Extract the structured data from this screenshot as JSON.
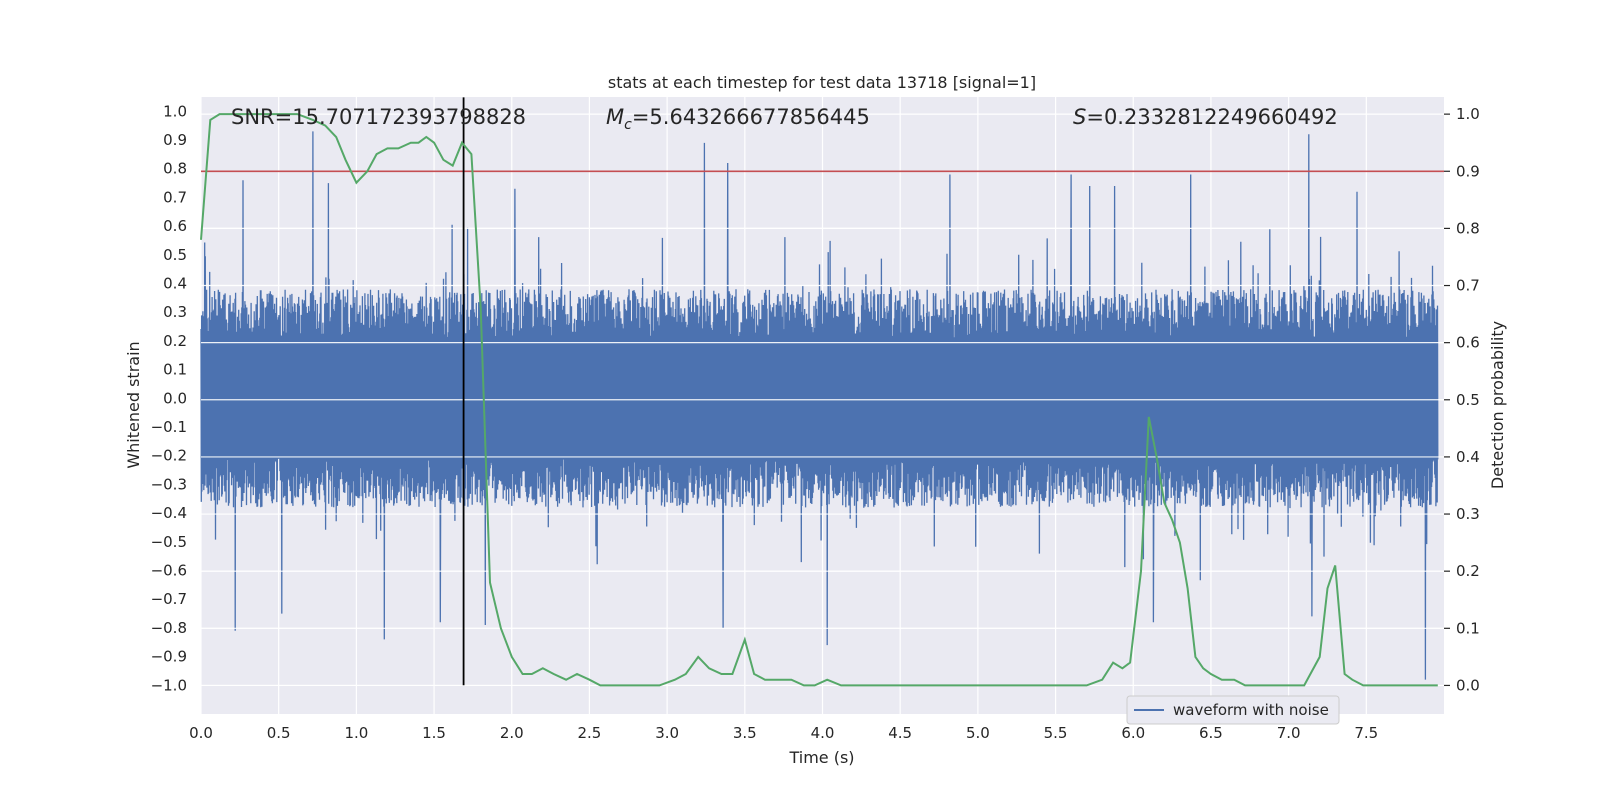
{
  "chart_data": {
    "type": "line",
    "title": "stats at each timestep for test data 13718 [signal=1]",
    "xlabel": "Time (s)",
    "ylabel": "Whitened strain",
    "ylabel_right": "Detection probability",
    "xlim": [
      0.0,
      8.0
    ],
    "ylim": [
      -1.1,
      1.05
    ],
    "ylim_right": [
      -0.05,
      1.03
    ],
    "x_ticks": [
      0.0,
      0.5,
      1.0,
      1.5,
      2.0,
      2.5,
      3.0,
      3.5,
      4.0,
      4.5,
      5.0,
      5.5,
      6.0,
      6.5,
      7.0,
      7.5
    ],
    "x_tick_labels": [
      "0.0",
      "0.5",
      "1.0",
      "1.5",
      "2.0",
      "2.5",
      "3.0",
      "3.5",
      "4.0",
      "4.5",
      "5.0",
      "5.5",
      "6.0",
      "6.5",
      "7.0",
      "7.5"
    ],
    "y_ticks": [
      1.0,
      0.9,
      0.8,
      0.7,
      0.6,
      0.5,
      0.4,
      0.3,
      0.2,
      0.1,
      0.0,
      -0.1,
      -0.2,
      -0.3,
      -0.4,
      -0.5,
      -0.6,
      -0.7,
      -0.8,
      -0.9,
      -1.0
    ],
    "y_tick_labels": [
      "1.0",
      "0.9",
      "0.8",
      "0.7",
      "0.6",
      "0.5",
      "0.4",
      "0.3",
      "0.2",
      "0.1",
      "0.0",
      "−0.1",
      "−0.2",
      "−0.3",
      "−0.4",
      "−0.5",
      "−0.6",
      "−0.7",
      "−0.8",
      "−0.9",
      "−1.0"
    ],
    "y_right_ticks": [
      1.0,
      0.9,
      0.8,
      0.7,
      0.6,
      0.5,
      0.4,
      0.3,
      0.2,
      0.1,
      0.0
    ],
    "y_right_tick_labels": [
      "1.0",
      "0.9",
      "0.8",
      "0.7",
      "0.6",
      "0.5",
      "0.4",
      "0.3",
      "0.2",
      "0.1",
      "0.0"
    ],
    "annotations": {
      "snr": "SNR=15.707172393798828",
      "mc_symbol": "M",
      "mc_subscript": "c",
      "mc_value": "=5.643266677856445",
      "s_symbol": "S",
      "s_value": "=0.2332812249660492"
    },
    "legend": {
      "position": "bottom-right",
      "entries": [
        "waveform with noise"
      ]
    },
    "waveform": {
      "name": "waveform with noise",
      "color": "#4c72b0",
      "t_start": 0.0,
      "t_end": 7.96,
      "typical_envelope": [
        -0.38,
        0.38
      ],
      "spikes": [
        {
          "t": 0.27,
          "v": 0.76
        },
        {
          "t": 0.72,
          "v": 0.93
        },
        {
          "t": 0.82,
          "v": 0.75
        },
        {
          "t": 2.02,
          "v": 0.73
        },
        {
          "t": 3.24,
          "v": 0.89
        },
        {
          "t": 3.39,
          "v": 0.82
        },
        {
          "t": 4.82,
          "v": 0.78
        },
        {
          "t": 5.6,
          "v": 0.78
        },
        {
          "t": 5.72,
          "v": 0.74
        },
        {
          "t": 5.88,
          "v": 0.74
        },
        {
          "t": 6.37,
          "v": 0.78
        },
        {
          "t": 7.13,
          "v": 0.92
        },
        {
          "t": 7.44,
          "v": 0.72
        },
        {
          "t": 0.22,
          "v": -0.81
        },
        {
          "t": 0.52,
          "v": -0.75
        },
        {
          "t": 1.18,
          "v": -0.84
        },
        {
          "t": 1.54,
          "v": -0.78
        },
        {
          "t": 1.83,
          "v": -0.79
        },
        {
          "t": 3.36,
          "v": -0.8
        },
        {
          "t": 4.03,
          "v": -0.86
        },
        {
          "t": 6.13,
          "v": -0.78
        },
        {
          "t": 7.15,
          "v": -0.76
        },
        {
          "t": 7.88,
          "v": -0.98
        }
      ]
    },
    "detection_probability": {
      "name": "Detection probability",
      "color": "#55a868",
      "x": [
        0.0,
        0.06,
        0.12,
        0.18,
        0.25,
        0.35,
        0.5,
        0.62,
        0.72,
        0.8,
        0.87,
        0.93,
        1.0,
        1.07,
        1.13,
        1.2,
        1.27,
        1.35,
        1.4,
        1.45,
        1.5,
        1.56,
        1.62,
        1.68,
        1.74,
        1.8,
        1.86,
        1.93,
        2.0,
        2.07,
        2.13,
        2.2,
        2.27,
        2.35,
        2.42,
        2.5,
        2.57,
        2.65,
        2.75,
        2.85,
        2.95,
        3.05,
        3.12,
        3.2,
        3.27,
        3.35,
        3.42,
        3.5,
        3.56,
        3.63,
        3.7,
        3.8,
        3.88,
        3.95,
        4.03,
        4.12,
        4.2,
        4.35,
        4.5,
        4.7,
        5.0,
        5.3,
        5.5,
        5.7,
        5.8,
        5.87,
        5.93,
        5.98,
        6.05,
        6.1,
        6.15,
        6.2,
        6.25,
        6.3,
        6.35,
        6.4,
        6.45,
        6.5,
        6.57,
        6.65,
        6.72,
        6.8,
        6.9,
        7.0,
        7.1,
        7.2,
        7.25,
        7.3,
        7.36,
        7.41,
        7.48,
        7.6,
        7.75,
        7.96
      ],
      "values": [
        0.78,
        0.99,
        1.0,
        1.0,
        1.0,
        1.0,
        1.0,
        1.0,
        0.99,
        0.98,
        0.96,
        0.92,
        0.88,
        0.9,
        0.93,
        0.94,
        0.94,
        0.95,
        0.95,
        0.96,
        0.95,
        0.92,
        0.91,
        0.95,
        0.93,
        0.66,
        0.18,
        0.1,
        0.05,
        0.02,
        0.02,
        0.03,
        0.02,
        0.01,
        0.02,
        0.01,
        0.0,
        0.0,
        0.0,
        0.0,
        0.0,
        0.01,
        0.02,
        0.05,
        0.03,
        0.02,
        0.02,
        0.08,
        0.02,
        0.01,
        0.01,
        0.01,
        0.0,
        0.0,
        0.01,
        0.0,
        0.0,
        0.0,
        0.0,
        0.0,
        0.0,
        0.0,
        0.0,
        0.0,
        0.01,
        0.04,
        0.03,
        0.04,
        0.2,
        0.47,
        0.4,
        0.32,
        0.29,
        0.25,
        0.17,
        0.05,
        0.03,
        0.02,
        0.01,
        0.01,
        0.0,
        0.0,
        0.0,
        0.0,
        0.0,
        0.05,
        0.17,
        0.21,
        0.02,
        0.01,
        0.0,
        0.0,
        0.0,
        0.0
      ]
    },
    "threshold": {
      "value": 0.9,
      "color": "#c44e52"
    },
    "marker_time": {
      "value": 1.69,
      "color": "#000000"
    }
  }
}
